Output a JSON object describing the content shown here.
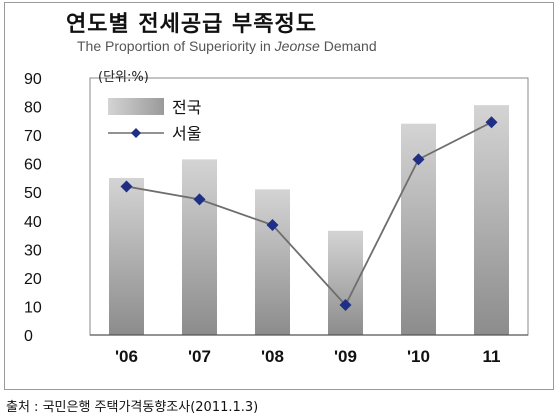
{
  "title": {
    "main": "연도별 전세공급 부족정도",
    "en_prefix": "The Proportion of Superiority in ",
    "en_italic": "Jeonse",
    "en_suffix": " Demand"
  },
  "source": "출처 : 국민은행 주택가격동향조사(2011.1.3)",
  "chart_data": {
    "type": "bar",
    "unit": "(단위:%)",
    "categories": [
      "'06",
      "'07",
      "'08",
      "'09",
      "'10",
      "11"
    ],
    "series": [
      {
        "name": "전국",
        "type": "bar",
        "values": [
          55,
          61.5,
          51,
          36.5,
          74,
          80.5
        ]
      },
      {
        "name": "서울",
        "type": "line",
        "values": [
          52,
          47.5,
          38.5,
          10.5,
          61.5,
          74.5
        ]
      }
    ],
    "ylim": [
      0,
      90
    ],
    "yticks": [
      0,
      10,
      20,
      30,
      40,
      50,
      60,
      70,
      80,
      90
    ],
    "grid": false,
    "legend": "top-left",
    "colors": {
      "bar_dark": "#8c8c8c",
      "bar_light": "#cfcfcf",
      "line": "#6e6e6e",
      "marker": "#1f2f86"
    }
  }
}
